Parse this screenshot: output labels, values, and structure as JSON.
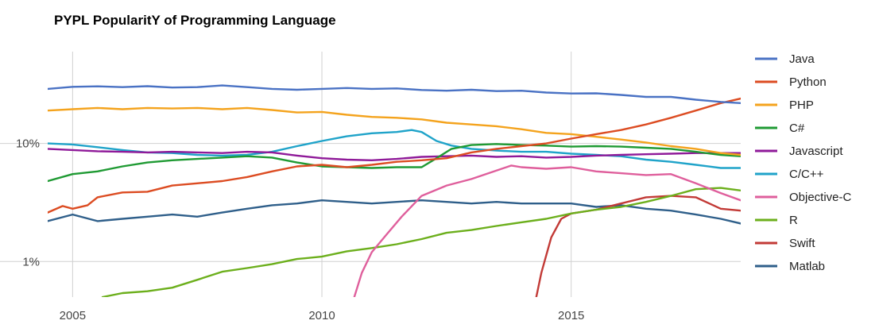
{
  "chart_data": {
    "type": "line",
    "title": "PYPL PopularitY of Programming Language",
    "yscale": "log",
    "xlim": [
      2004.5,
      2018.4
    ],
    "ylim": [
      0.5,
      60
    ],
    "x_ticks": [
      {
        "value": 2005,
        "label": "2005"
      },
      {
        "value": 2010,
        "label": "2010"
      },
      {
        "value": 2015,
        "label": "2015"
      }
    ],
    "y_ticks": [
      {
        "value": 10,
        "label": "10%"
      },
      {
        "value": 1,
        "label": "1%"
      }
    ],
    "legend_position": "right",
    "grid": true,
    "series": [
      {
        "name": "Java",
        "color": "#4a72c4",
        "points": [
          [
            2004.5,
            29
          ],
          [
            2005,
            30.2
          ],
          [
            2005.5,
            30.5
          ],
          [
            2006,
            30
          ],
          [
            2006.5,
            30.6
          ],
          [
            2007,
            29.8
          ],
          [
            2007.5,
            30
          ],
          [
            2008,
            31
          ],
          [
            2008.5,
            30
          ],
          [
            2009,
            29
          ],
          [
            2009.5,
            28.5
          ],
          [
            2010,
            29
          ],
          [
            2010.5,
            29.5
          ],
          [
            2011,
            29
          ],
          [
            2011.5,
            29.3
          ],
          [
            2012,
            28.4
          ],
          [
            2012.5,
            28
          ],
          [
            2013,
            28.5
          ],
          [
            2013.5,
            27.8
          ],
          [
            2014,
            28
          ],
          [
            2014.5,
            27
          ],
          [
            2015,
            26.5
          ],
          [
            2015.5,
            26.6
          ],
          [
            2016,
            25.8
          ],
          [
            2016.5,
            24.8
          ],
          [
            2017,
            24.8
          ],
          [
            2017.5,
            23.5
          ],
          [
            2018,
            22.5
          ],
          [
            2018.4,
            22
          ]
        ]
      },
      {
        "name": "Python",
        "color": "#dc4c22",
        "points": [
          [
            2004.5,
            2.6
          ],
          [
            2004.8,
            2.95
          ],
          [
            2005,
            2.8
          ],
          [
            2005.3,
            3.0
          ],
          [
            2005.5,
            3.5
          ],
          [
            2006,
            3.85
          ],
          [
            2006.5,
            3.9
          ],
          [
            2007,
            4.4
          ],
          [
            2007.5,
            4.6
          ],
          [
            2008,
            4.8
          ],
          [
            2008.5,
            5.2
          ],
          [
            2009,
            5.8
          ],
          [
            2009.5,
            6.4
          ],
          [
            2010,
            6.6
          ],
          [
            2010.5,
            6.3
          ],
          [
            2011,
            6.6
          ],
          [
            2011.5,
            7.0
          ],
          [
            2012,
            7.2
          ],
          [
            2012.5,
            7.5
          ],
          [
            2013,
            8.4
          ],
          [
            2013.5,
            9.0
          ],
          [
            2014,
            9.5
          ],
          [
            2014.5,
            10
          ],
          [
            2015,
            11
          ],
          [
            2015.5,
            12
          ],
          [
            2016,
            13
          ],
          [
            2016.5,
            14.5
          ],
          [
            2017,
            16.5
          ],
          [
            2017.5,
            19
          ],
          [
            2018,
            22
          ],
          [
            2018.4,
            24
          ]
        ]
      },
      {
        "name": "PHP",
        "color": "#f4a31d",
        "points": [
          [
            2004.5,
            19
          ],
          [
            2005,
            19.5
          ],
          [
            2005.5,
            20
          ],
          [
            2006,
            19.5
          ],
          [
            2006.5,
            20
          ],
          [
            2007,
            19.8
          ],
          [
            2007.5,
            20
          ],
          [
            2008,
            19.5
          ],
          [
            2008.5,
            20
          ],
          [
            2009,
            19.2
          ],
          [
            2009.5,
            18.3
          ],
          [
            2010,
            18.5
          ],
          [
            2010.5,
            17.5
          ],
          [
            2011,
            16.8
          ],
          [
            2011.5,
            16.5
          ],
          [
            2012,
            16
          ],
          [
            2012.5,
            15
          ],
          [
            2013,
            14.5
          ],
          [
            2013.5,
            14
          ],
          [
            2014,
            13.2
          ],
          [
            2014.5,
            12.3
          ],
          [
            2015,
            12
          ],
          [
            2015.5,
            11.4
          ],
          [
            2016,
            10.8
          ],
          [
            2016.5,
            10.2
          ],
          [
            2017,
            9.5
          ],
          [
            2017.5,
            9
          ],
          [
            2018,
            8.3
          ],
          [
            2018.4,
            8
          ]
        ]
      },
      {
        "name": "C#",
        "color": "#1f9a33",
        "points": [
          [
            2004.5,
            4.8
          ],
          [
            2005,
            5.5
          ],
          [
            2005.5,
            5.8
          ],
          [
            2006,
            6.4
          ],
          [
            2006.5,
            6.9
          ],
          [
            2007,
            7.2
          ],
          [
            2007.5,
            7.4
          ],
          [
            2008,
            7.6
          ],
          [
            2008.5,
            7.8
          ],
          [
            2009,
            7.6
          ],
          [
            2009.5,
            6.9
          ],
          [
            2010,
            6.4
          ],
          [
            2010.5,
            6.3
          ],
          [
            2011,
            6.2
          ],
          [
            2011.5,
            6.3
          ],
          [
            2012,
            6.3
          ],
          [
            2012.3,
            7.5
          ],
          [
            2012.6,
            9
          ],
          [
            2013,
            9.7
          ],
          [
            2013.5,
            9.9
          ],
          [
            2014,
            9.7
          ],
          [
            2014.5,
            9.6
          ],
          [
            2015,
            9.4
          ],
          [
            2015.5,
            9.5
          ],
          [
            2016,
            9.4
          ],
          [
            2016.5,
            9.2
          ],
          [
            2017,
            9.0
          ],
          [
            2017.5,
            8.5
          ],
          [
            2018,
            8.0
          ],
          [
            2018.4,
            7.8
          ]
        ]
      },
      {
        "name": "Javascript",
        "color": "#8f1a99",
        "points": [
          [
            2004.5,
            9.0
          ],
          [
            2005,
            8.8
          ],
          [
            2005.5,
            8.6
          ],
          [
            2006,
            8.5
          ],
          [
            2006.5,
            8.4
          ],
          [
            2007,
            8.5
          ],
          [
            2007.5,
            8.4
          ],
          [
            2008,
            8.3
          ],
          [
            2008.5,
            8.5
          ],
          [
            2009,
            8.4
          ],
          [
            2009.5,
            7.9
          ],
          [
            2010,
            7.5
          ],
          [
            2010.5,
            7.3
          ],
          [
            2011,
            7.2
          ],
          [
            2011.5,
            7.4
          ],
          [
            2012,
            7.7
          ],
          [
            2012.5,
            7.8
          ],
          [
            2013,
            7.9
          ],
          [
            2013.5,
            7.7
          ],
          [
            2014,
            7.8
          ],
          [
            2014.5,
            7.6
          ],
          [
            2015,
            7.7
          ],
          [
            2015.5,
            7.9
          ],
          [
            2016,
            8.0
          ],
          [
            2016.5,
            8.1
          ],
          [
            2017,
            8.2
          ],
          [
            2017.5,
            8.3
          ],
          [
            2018,
            8.3
          ],
          [
            2018.4,
            8.3
          ]
        ]
      },
      {
        "name": "C/C++",
        "color": "#1fa3c9",
        "points": [
          [
            2004.5,
            10
          ],
          [
            2005,
            9.8
          ],
          [
            2005.5,
            9.3
          ],
          [
            2006,
            8.8
          ],
          [
            2006.5,
            8.4
          ],
          [
            2007,
            8.3
          ],
          [
            2007.5,
            8.0
          ],
          [
            2008,
            7.9
          ],
          [
            2008.5,
            8.0
          ],
          [
            2009,
            8.5
          ],
          [
            2009.5,
            9.5
          ],
          [
            2010,
            10.5
          ],
          [
            2010.5,
            11.5
          ],
          [
            2011,
            12.2
          ],
          [
            2011.5,
            12.5
          ],
          [
            2011.8,
            13
          ],
          [
            2012,
            12.5
          ],
          [
            2012.3,
            10.5
          ],
          [
            2012.6,
            9.6
          ],
          [
            2013,
            9.0
          ],
          [
            2013.5,
            8.7
          ],
          [
            2014,
            8.5
          ],
          [
            2014.5,
            8.5
          ],
          [
            2015,
            8.2
          ],
          [
            2015.5,
            8.0
          ],
          [
            2016,
            7.8
          ],
          [
            2016.5,
            7.3
          ],
          [
            2017,
            7.0
          ],
          [
            2017.5,
            6.6
          ],
          [
            2018,
            6.2
          ],
          [
            2018.4,
            6.2
          ]
        ]
      },
      {
        "name": "Objective-C",
        "color": "#df5f9c",
        "points": [
          [
            2010.65,
            0.5
          ],
          [
            2010.8,
            0.8
          ],
          [
            2011,
            1.2
          ],
          [
            2011.3,
            1.7
          ],
          [
            2011.6,
            2.4
          ],
          [
            2012,
            3.6
          ],
          [
            2012.5,
            4.4
          ],
          [
            2013,
            5.0
          ],
          [
            2013.5,
            5.9
          ],
          [
            2013.8,
            6.5
          ],
          [
            2014,
            6.3
          ],
          [
            2014.5,
            6.1
          ],
          [
            2015,
            6.3
          ],
          [
            2015.5,
            5.8
          ],
          [
            2016,
            5.6
          ],
          [
            2016.5,
            5.4
          ],
          [
            2017,
            5.5
          ],
          [
            2017.5,
            4.6
          ],
          [
            2018,
            3.8
          ],
          [
            2018.4,
            3.3
          ]
        ]
      },
      {
        "name": "R",
        "color": "#6caf1c",
        "points": [
          [
            2005.6,
            0.5
          ],
          [
            2006,
            0.54
          ],
          [
            2006.5,
            0.56
          ],
          [
            2007,
            0.6
          ],
          [
            2007.5,
            0.7
          ],
          [
            2008,
            0.82
          ],
          [
            2008.5,
            0.88
          ],
          [
            2009,
            0.95
          ],
          [
            2009.5,
            1.05
          ],
          [
            2010,
            1.1
          ],
          [
            2010.5,
            1.22
          ],
          [
            2011,
            1.3
          ],
          [
            2011.5,
            1.4
          ],
          [
            2012,
            1.55
          ],
          [
            2012.5,
            1.75
          ],
          [
            2013,
            1.85
          ],
          [
            2013.5,
            2.0
          ],
          [
            2014,
            2.15
          ],
          [
            2014.5,
            2.3
          ],
          [
            2015,
            2.55
          ],
          [
            2015.5,
            2.75
          ],
          [
            2016,
            2.9
          ],
          [
            2016.5,
            3.2
          ],
          [
            2017,
            3.6
          ],
          [
            2017.5,
            4.1
          ],
          [
            2018,
            4.2
          ],
          [
            2018.4,
            4.0
          ]
        ]
      },
      {
        "name": "Swift",
        "color": "#c23a36",
        "points": [
          [
            2014.3,
            0.5
          ],
          [
            2014.4,
            0.8
          ],
          [
            2014.6,
            1.6
          ],
          [
            2014.8,
            2.3
          ],
          [
            2015,
            2.55
          ],
          [
            2015.5,
            2.75
          ],
          [
            2016,
            3.1
          ],
          [
            2016.5,
            3.5
          ],
          [
            2017,
            3.6
          ],
          [
            2017.5,
            3.5
          ],
          [
            2018,
            2.8
          ],
          [
            2018.4,
            2.7
          ]
        ]
      },
      {
        "name": "Matlab",
        "color": "#2f5f8a",
        "points": [
          [
            2004.5,
            2.2
          ],
          [
            2005,
            2.5
          ],
          [
            2005.5,
            2.2
          ],
          [
            2006,
            2.3
          ],
          [
            2006.5,
            2.4
          ],
          [
            2007,
            2.5
          ],
          [
            2007.5,
            2.4
          ],
          [
            2008,
            2.6
          ],
          [
            2008.5,
            2.8
          ],
          [
            2009,
            3.0
          ],
          [
            2009.5,
            3.1
          ],
          [
            2010,
            3.3
          ],
          [
            2010.5,
            3.2
          ],
          [
            2011,
            3.1
          ],
          [
            2011.5,
            3.2
          ],
          [
            2012,
            3.3
          ],
          [
            2012.5,
            3.2
          ],
          [
            2013,
            3.1
          ],
          [
            2013.5,
            3.2
          ],
          [
            2014,
            3.1
          ],
          [
            2014.5,
            3.1
          ],
          [
            2015,
            3.1
          ],
          [
            2015.5,
            2.9
          ],
          [
            2016,
            3.0
          ],
          [
            2016.5,
            2.8
          ],
          [
            2017,
            2.7
          ],
          [
            2017.5,
            2.5
          ],
          [
            2018,
            2.3
          ],
          [
            2018.4,
            2.1
          ]
        ]
      }
    ]
  }
}
